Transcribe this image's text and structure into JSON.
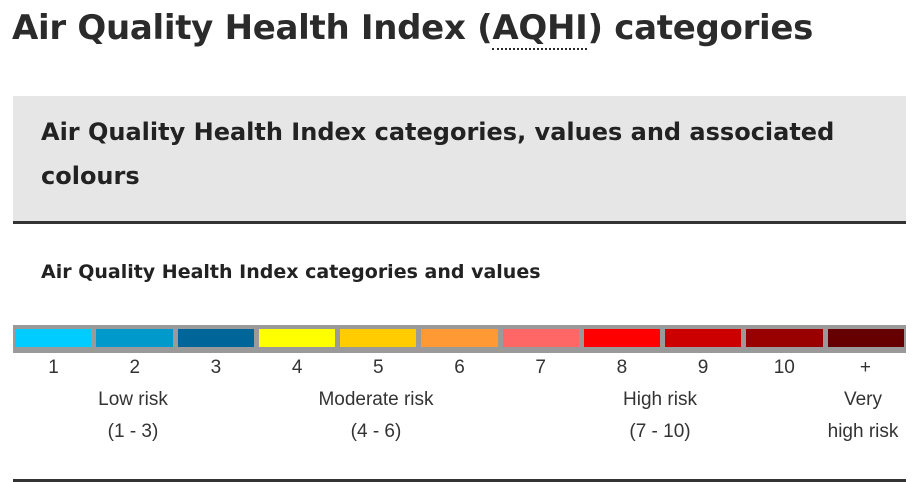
{
  "header": {
    "title_prefix": "Air Quality Health Index (",
    "title_abbr": "AQHI",
    "title_suffix": ") categories"
  },
  "table": {
    "caption": "Air Quality Health Index categories, values and associated colours",
    "subheading": "Air Quality Health Index categories and values",
    "scale": [
      {
        "value": "1",
        "color": "#00ccff"
      },
      {
        "value": "2",
        "color": "#0099cc"
      },
      {
        "value": "3",
        "color": "#006699"
      },
      {
        "value": "4",
        "color": "#ffff00"
      },
      {
        "value": "5",
        "color": "#ffcc00"
      },
      {
        "value": "6",
        "color": "#ff9933"
      },
      {
        "value": "7",
        "color": "#ff6666"
      },
      {
        "value": "8",
        "color": "#ff0000"
      },
      {
        "value": "9",
        "color": "#cc0000"
      },
      {
        "value": "10",
        "color": "#990000"
      },
      {
        "value": "+",
        "color": "#660000"
      }
    ],
    "categories": [
      {
        "name": "Low risk",
        "range": "(1 - 3)"
      },
      {
        "name": "Moderate risk",
        "range": "(4 - 6)"
      },
      {
        "name": "High risk",
        "range": "(7 - 10)"
      },
      {
        "name": "Very",
        "range": "high risk"
      }
    ]
  }
}
